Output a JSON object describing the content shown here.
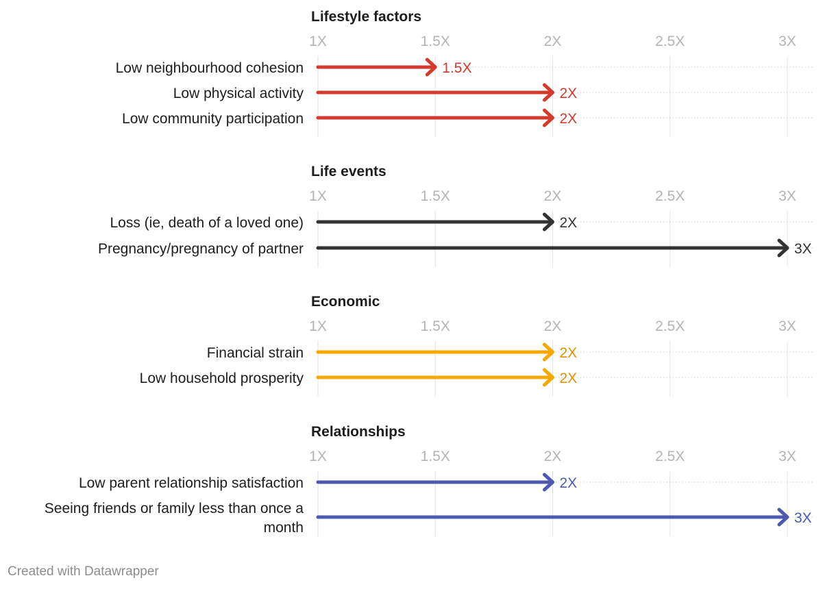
{
  "chart_data": {
    "type": "arrow",
    "xlim": [
      1,
      3
    ],
    "ticks": [
      1,
      1.5,
      2,
      2.5,
      3
    ],
    "tick_labels": [
      "1X",
      "1.5X",
      "2X",
      "2.5X",
      "3X"
    ],
    "groups": [
      {
        "title": "Lifestyle factors",
        "color": "#d33a2e",
        "rows": [
          {
            "label": [
              "Low neighbourhood cohesion"
            ],
            "start": 1,
            "end": 1.5,
            "value_label": "1.5X"
          },
          {
            "label": [
              "Low physical activity"
            ],
            "start": 1,
            "end": 2,
            "value_label": "2X"
          },
          {
            "label": [
              "Low community participation"
            ],
            "start": 1,
            "end": 2,
            "value_label": "2X"
          }
        ]
      },
      {
        "title": "Life events",
        "color": "#333333",
        "rows": [
          {
            "label": [
              "Loss (ie, death of a loved one)"
            ],
            "start": 1,
            "end": 2,
            "value_label": "2X"
          },
          {
            "label": [
              "Pregnancy/pregnancy of partner"
            ],
            "start": 1,
            "end": 3,
            "value_label": "3X"
          }
        ]
      },
      {
        "title": "Economic",
        "color": "#f5a800",
        "label_color": "#e08f00",
        "rows": [
          {
            "label": [
              "Financial strain"
            ],
            "start": 1,
            "end": 2,
            "value_label": "2X"
          },
          {
            "label": [
              "Low household prosperity"
            ],
            "start": 1,
            "end": 2,
            "value_label": "2X"
          }
        ]
      },
      {
        "title": "Relationships",
        "color": "#4c5aae",
        "rows": [
          {
            "label": [
              "Low parent relationship satisfaction"
            ],
            "start": 1,
            "end": 2,
            "value_label": "2X"
          },
          {
            "label": [
              "Seeing friends or family less than once a",
              "month"
            ],
            "start": 1,
            "end": 3,
            "value_label": "3X"
          }
        ]
      }
    ]
  },
  "footer": {
    "credit": "Created with Datawrapper"
  }
}
